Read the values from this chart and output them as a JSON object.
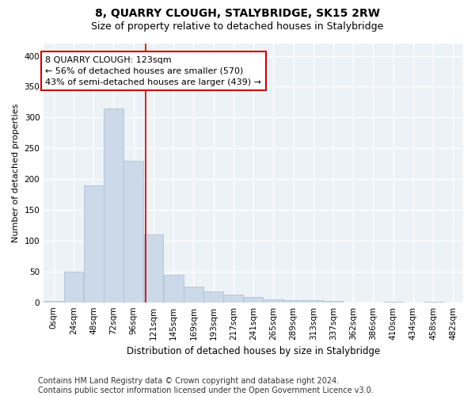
{
  "title": "8, QUARRY CLOUGH, STALYBRIDGE, SK15 2RW",
  "subtitle": "Size of property relative to detached houses in Stalybridge",
  "xlabel": "Distribution of detached houses by size in Stalybridge",
  "ylabel": "Number of detached properties",
  "bar_color": "#ccd9e8",
  "bar_edge_color": "#adc4d8",
  "background_color": "#edf2f7",
  "grid_color": "#ffffff",
  "property_line_x": 123,
  "property_line_color": "#cc0000",
  "annotation_text": "8 QUARRY CLOUGH: 123sqm\n← 56% of detached houses are smaller (570)\n43% of semi-detached houses are larger (439) →",
  "annotation_box_color": "#ffffff",
  "annotation_box_edge": "#cc0000",
  "bin_starts": [
    0,
    24,
    48,
    72,
    96,
    120,
    144,
    168,
    192,
    216,
    240,
    264,
    288,
    312,
    336,
    360,
    384,
    408,
    432,
    456,
    480
  ],
  "bin_width": 24,
  "bin_labels": [
    "0sqm",
    "24sqm",
    "48sqm",
    "72sqm",
    "96sqm",
    "121sqm",
    "145sqm",
    "169sqm",
    "193sqm",
    "217sqm",
    "241sqm",
    "265sqm",
    "289sqm",
    "313sqm",
    "337sqm",
    "362sqm",
    "386sqm",
    "410sqm",
    "434sqm",
    "458sqm",
    "482sqm"
  ],
  "bar_heights": [
    2,
    50,
    190,
    315,
    230,
    110,
    45,
    25,
    18,
    12,
    8,
    5,
    3,
    3,
    2,
    0,
    0,
    1,
    0,
    1,
    0
  ],
  "ylim": [
    0,
    420
  ],
  "yticks": [
    0,
    50,
    100,
    150,
    200,
    250,
    300,
    350,
    400
  ],
  "xlim": [
    0,
    504
  ],
  "footer": "Contains HM Land Registry data © Crown copyright and database right 2024.\nContains public sector information licensed under the Open Government Licence v3.0.",
  "footer_fontsize": 7.0,
  "title_fontsize": 10,
  "subtitle_fontsize": 9,
  "ylabel_fontsize": 8,
  "xlabel_fontsize": 8.5,
  "tick_fontsize": 7.5,
  "annot_fontsize": 8
}
